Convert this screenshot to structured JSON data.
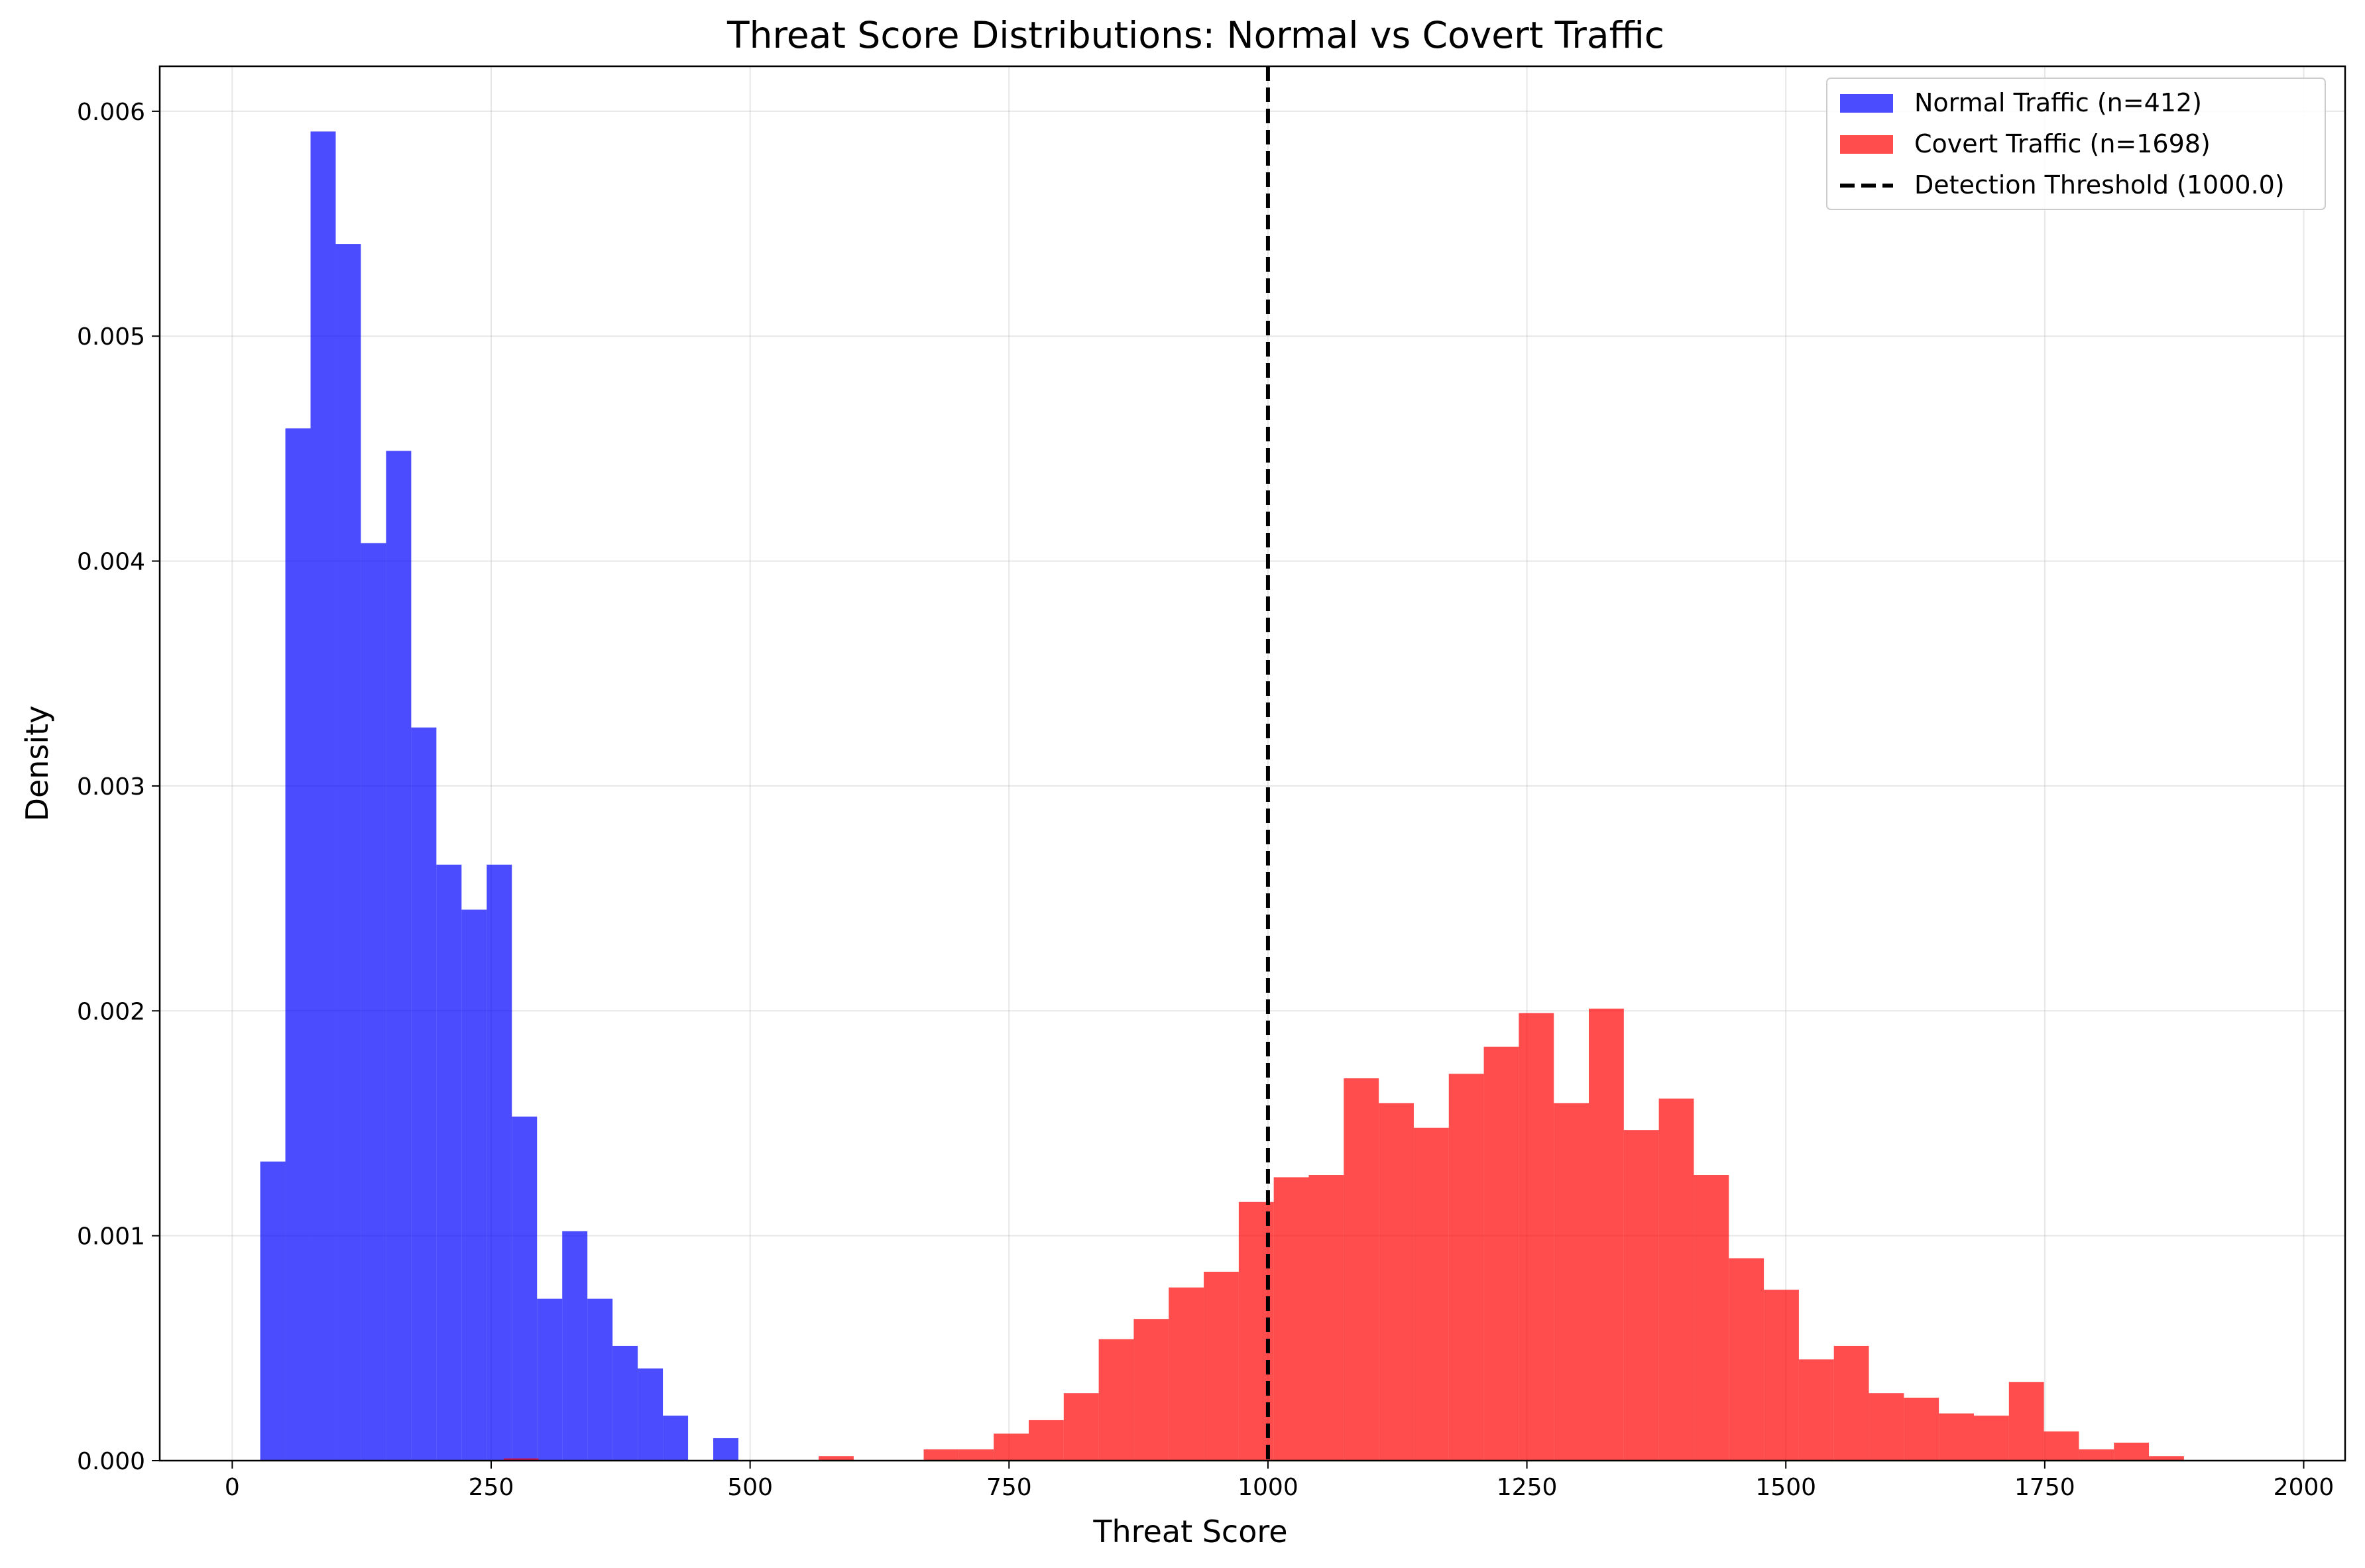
{
  "chart_data": {
    "type": "histogram",
    "title": "Threat Score Distributions: Normal vs Covert Traffic",
    "xlabel": "Threat Score",
    "ylabel": "Density",
    "xlim": [
      -70,
      2040
    ],
    "ylim": [
      0,
      0.0062
    ],
    "x_ticks": [
      0,
      250,
      500,
      750,
      1000,
      1250,
      1500,
      1750,
      2000
    ],
    "y_ticks": [
      0.0,
      0.001,
      0.002,
      0.003,
      0.004,
      0.005,
      0.006
    ],
    "x_tick_labels": [
      "0",
      "250",
      "500",
      "750",
      "1000",
      "1250",
      "1500",
      "1750",
      "2000"
    ],
    "y_tick_labels": [
      "0.000",
      "0.001",
      "0.002",
      "0.003",
      "0.004",
      "0.005",
      "0.006"
    ],
    "grid": true,
    "legend_position": "top-right",
    "threshold": {
      "name": "Detection Threshold (1000.0)",
      "x": 1000,
      "color": "#000000",
      "style": "dashed"
    },
    "series": [
      {
        "name": "Normal Traffic (n=412)",
        "color": "#0000ff",
        "alpha": 0.7,
        "bin_start": 27,
        "bin_width": 24.3,
        "values": [
          0.00133,
          0.00459,
          0.00591,
          0.00541,
          0.00408,
          0.00449,
          0.00326,
          0.00265,
          0.00245,
          0.00265,
          0.00153,
          0.00072,
          0.00102,
          0.00072,
          0.00051,
          0.00041,
          0.0002,
          0.0,
          0.0001
        ]
      },
      {
        "name": "Covert Traffic (n=1698)",
        "color": "#ff0000",
        "alpha": 0.7,
        "bin_start": 262,
        "bin_width": 33.8,
        "values": [
          1e-05,
          0.0,
          0.0,
          0.0,
          0.0,
          0.0,
          0.0,
          0.0,
          0.0,
          2e-05,
          0.0,
          0.0,
          5e-05,
          5e-05,
          0.00012,
          0.00018,
          0.0003,
          0.00054,
          0.00063,
          0.00077,
          0.00084,
          0.00115,
          0.00126,
          0.00127,
          0.0017,
          0.00159,
          0.00148,
          0.00172,
          0.00184,
          0.00199,
          0.00159,
          0.00201,
          0.00147,
          0.00161,
          0.00127,
          0.0009,
          0.00076,
          0.00045,
          0.00051,
          0.0003,
          0.00028,
          0.00021,
          0.0002,
          0.00035,
          0.00013,
          5e-05,
          8e-05,
          2e-05
        ]
      }
    ]
  }
}
